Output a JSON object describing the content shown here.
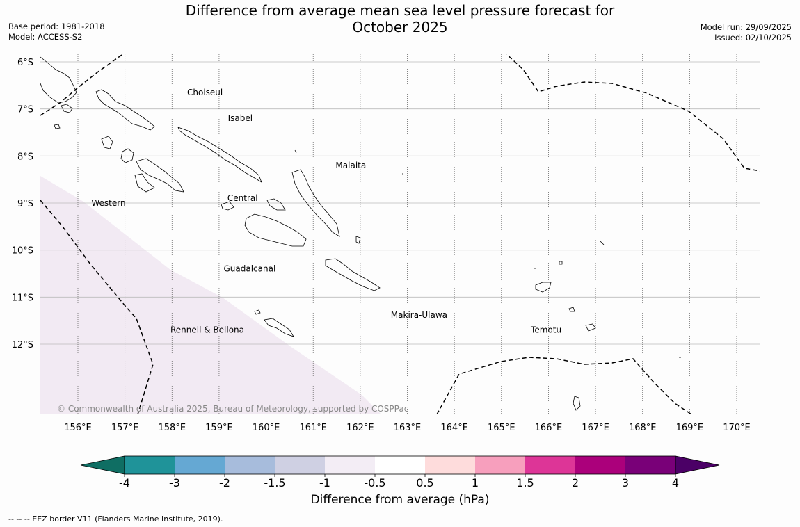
{
  "title": {
    "line1": "Difference from average mean sea level pressure forecast for",
    "line2": "October 2025"
  },
  "meta": {
    "base_period": "Base period: 1981-2018",
    "model": "Model: ACCESS-S2",
    "model_run": "Model run: 29/09/2025",
    "issued": "Issued: 02/10/2025"
  },
  "map": {
    "lon_range": [
      155.2,
      170.5
    ],
    "lat_range": [
      -13.5,
      -5.85
    ],
    "lat_ticks": [
      {
        "value": -6,
        "label": "6°S"
      },
      {
        "value": -7,
        "label": "7°S"
      },
      {
        "value": -8,
        "label": "8°S"
      },
      {
        "value": -9,
        "label": "9°S"
      },
      {
        "value": -10,
        "label": "10°S"
      },
      {
        "value": -11,
        "label": "11°S"
      },
      {
        "value": -12,
        "label": "12°S"
      }
    ],
    "lon_ticks": [
      {
        "value": 156,
        "label": "156°E"
      },
      {
        "value": 157,
        "label": "157°E"
      },
      {
        "value": 158,
        "label": "158°E"
      },
      {
        "value": 159,
        "label": "159°E"
      },
      {
        "value": 160,
        "label": "160°E"
      },
      {
        "value": 161,
        "label": "161°E"
      },
      {
        "value": 162,
        "label": "162°E"
      },
      {
        "value": 163,
        "label": "163°E"
      },
      {
        "value": 164,
        "label": "164°E"
      },
      {
        "value": 165,
        "label": "165°E"
      },
      {
        "value": 166,
        "label": "166°E"
      },
      {
        "value": 167,
        "label": "167°E"
      },
      {
        "value": 168,
        "label": "168°E"
      },
      {
        "value": 169,
        "label": "169°E"
      },
      {
        "value": 170,
        "label": "170°E"
      }
    ],
    "regions": [
      {
        "name": "Choiseul",
        "lon": 158.7,
        "lat": -6.65
      },
      {
        "name": "Isabel",
        "lon": 159.45,
        "lat": -7.2
      },
      {
        "name": "Malaita",
        "lon": 161.8,
        "lat": -8.2
      },
      {
        "name": "Western",
        "lon": 156.65,
        "lat": -9.0
      },
      {
        "name": "Central",
        "lon": 159.5,
        "lat": -8.9
      },
      {
        "name": "Guadalcanal",
        "lon": 159.65,
        "lat": -10.4
      },
      {
        "name": "Makira-Ulawa",
        "lon": 163.25,
        "lat": -11.38
      },
      {
        "name": "Temotu",
        "lon": 165.95,
        "lat": -11.7
      },
      {
        "name": "Rennell & Bellona",
        "lon": 158.75,
        "lat": -11.7
      }
    ],
    "anomaly_region": {
      "category": "-1 to -0.5",
      "color": "#f2eaf3"
    },
    "copyright": "© Commonwealth of Australia 2025, Bureau of Meteorology, supported by COSPPac",
    "eez_note": "--  --  -- EEZ border V11 (Flanders Marine Institute, 2019)."
  },
  "colorbar": {
    "title": "Difference from average (hPa)",
    "colors": [
      "#0f6e63",
      "#1f9399",
      "#65a8d3",
      "#a7bcdc",
      "#cfd0e3",
      "#f3edf5",
      "#ffffff",
      "#fedcdc",
      "#f79fbd",
      "#dd3597",
      "#ab007b",
      "#790078",
      "#4b0066"
    ],
    "labels": [
      "-4",
      "-3",
      "-2",
      "-1.5",
      "-1",
      "-0.5",
      "0.5",
      "1",
      "1.5",
      "2",
      "3",
      "4"
    ]
  }
}
